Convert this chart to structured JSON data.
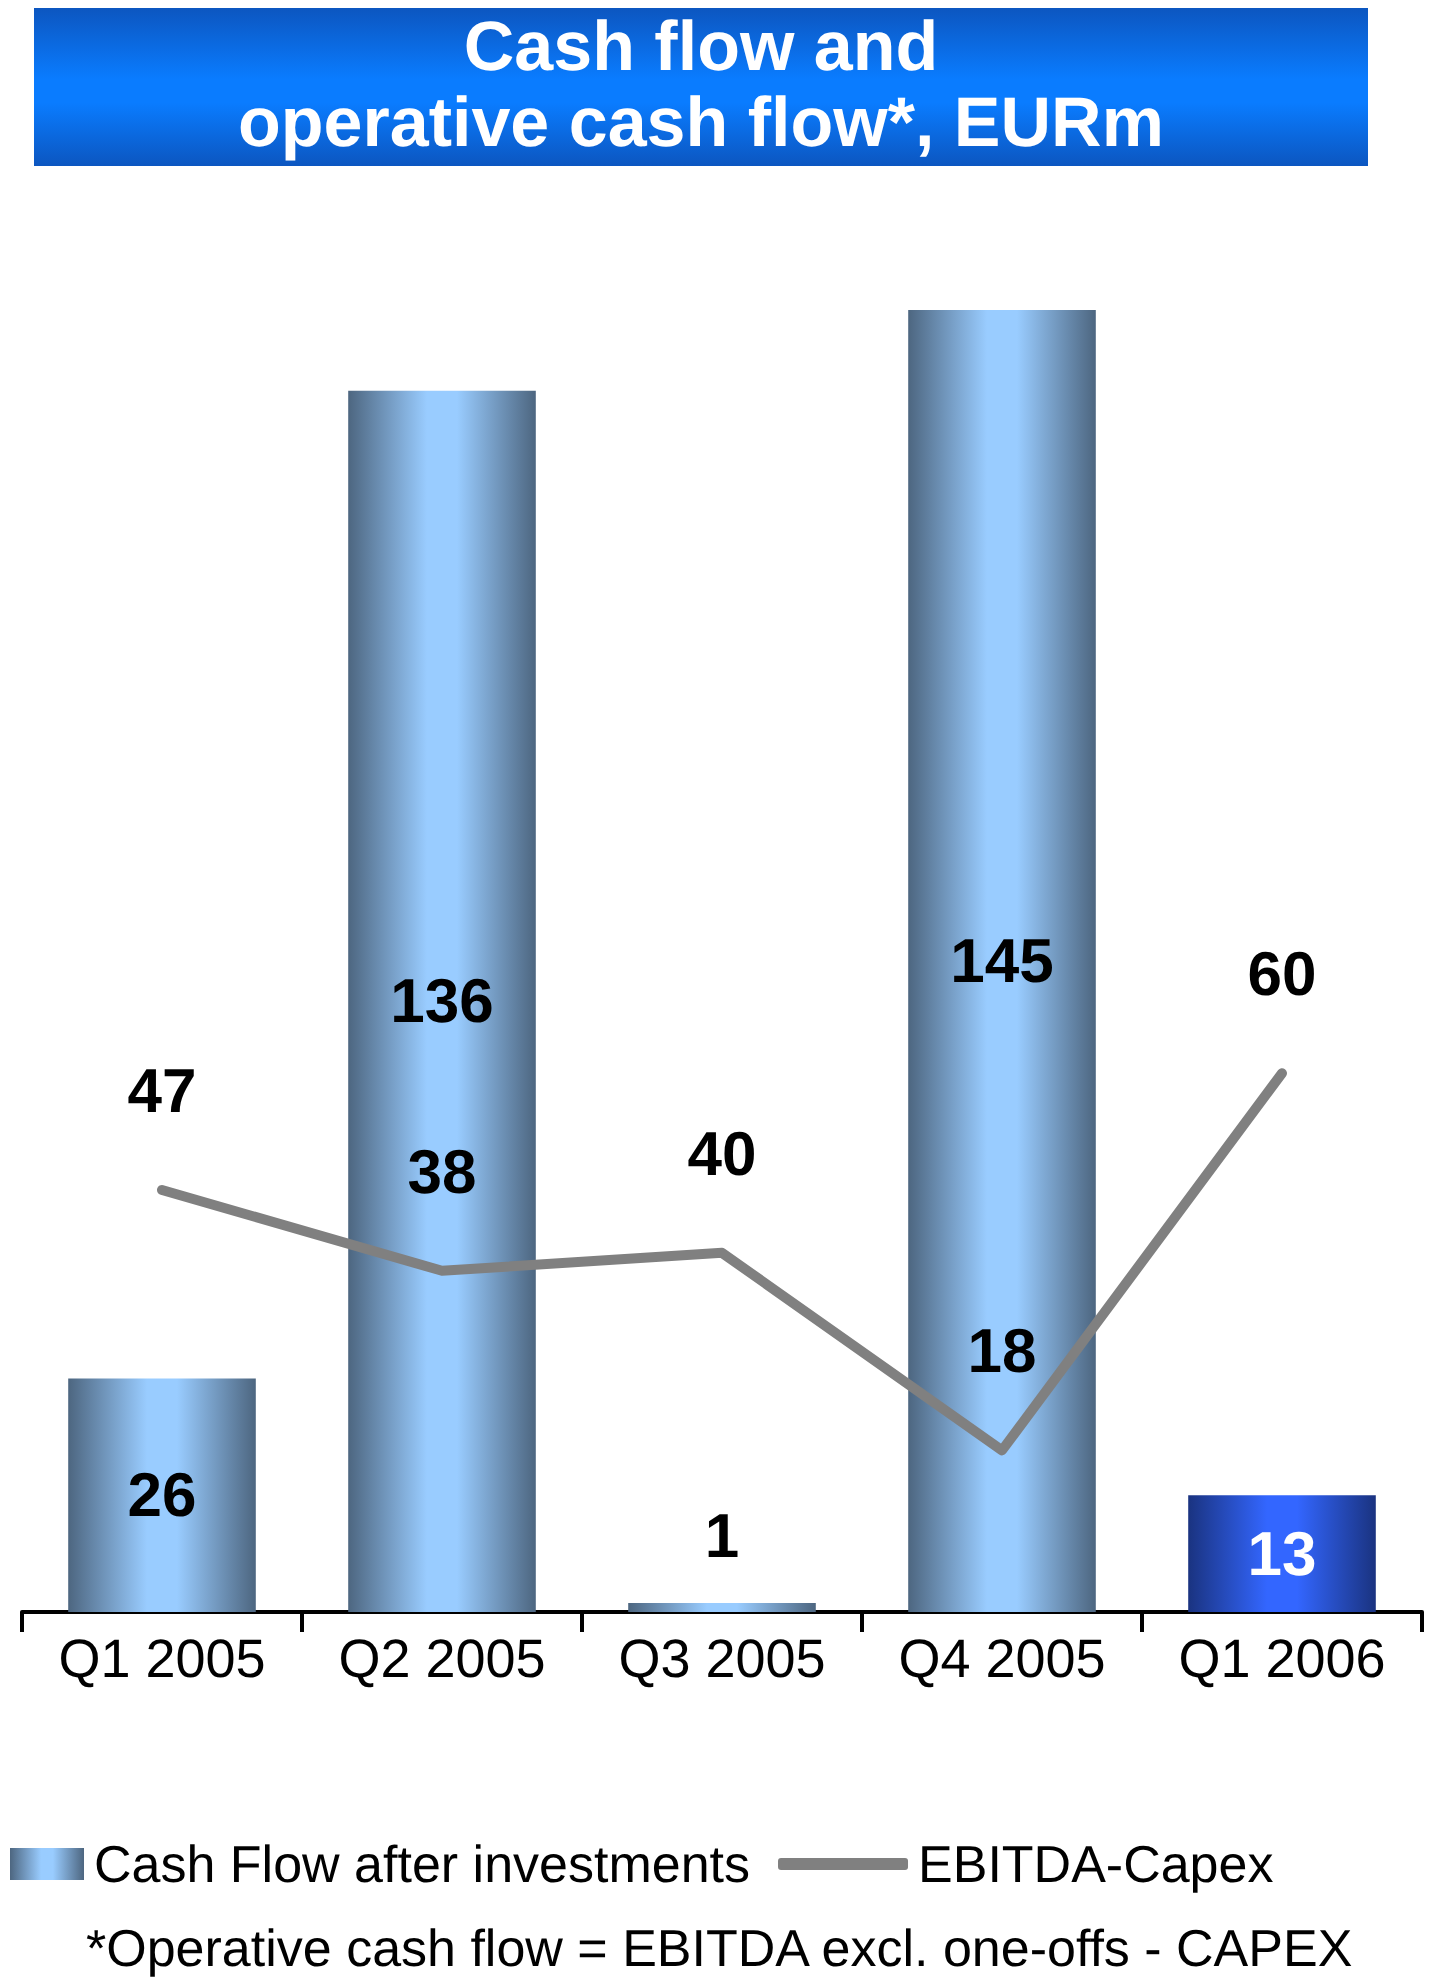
{
  "chart_data": {
    "type": "bar",
    "title": "Cash flow and\noperative cash flow*, EURm",
    "categories": [
      "Q1 2005",
      "Q2 2005",
      "Q3 2005",
      "Q4 2005",
      "Q1 2006"
    ],
    "series": [
      {
        "name": "Cash Flow after investments",
        "colors": [
          "#99ccff",
          "#99ccff",
          "#99ccff",
          "#99ccff",
          "#3366ff"
        ],
        "values": [
          26,
          136,
          1,
          145,
          13
        ]
      },
      {
        "name": "EBITDA-Capex",
        "type": "line",
        "color": "#808080",
        "values": [
          47,
          38,
          40,
          18,
          60
        ]
      }
    ],
    "tick_labels": "x",
    "data_labels": true,
    "legend": "bottom",
    "marker": "none",
    "line_style": "solid",
    "annotations": [
      "*Operative cash flow = EBITDA excl. one-offs - CAPEX"
    ]
  }
}
